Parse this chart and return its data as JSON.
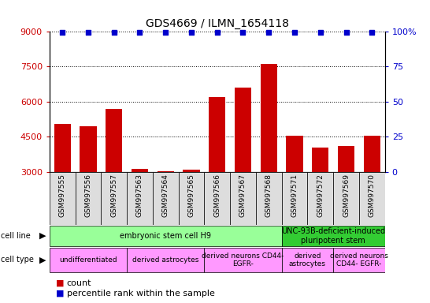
{
  "title": "GDS4669 / ILMN_1654118",
  "samples": [
    "GSM997555",
    "GSM997556",
    "GSM997557",
    "GSM997563",
    "GSM997564",
    "GSM997565",
    "GSM997566",
    "GSM997567",
    "GSM997568",
    "GSM997571",
    "GSM997572",
    "GSM997569",
    "GSM997570"
  ],
  "counts": [
    5050,
    4950,
    5700,
    3150,
    3050,
    3100,
    6200,
    6600,
    7600,
    4550,
    4050,
    4100,
    4550
  ],
  "percentile": [
    99,
    99,
    99,
    99,
    99,
    99,
    99,
    99,
    99,
    99,
    99,
    99,
    99
  ],
  "bar_color": "#cc0000",
  "dot_color": "#0000cc",
  "ylim_left": [
    3000,
    9000
  ],
  "ylim_right": [
    0,
    100
  ],
  "yticks_left": [
    3000,
    4500,
    6000,
    7500,
    9000
  ],
  "yticks_right": [
    0,
    25,
    50,
    75,
    100
  ],
  "cell_line_groups": [
    {
      "label": "embryonic stem cell H9",
      "start": 0,
      "end": 8,
      "color": "#99ff99"
    },
    {
      "label": "UNC-93B-deficient-induced\npluripotent stem",
      "start": 9,
      "end": 12,
      "color": "#33cc33"
    }
  ],
  "cell_type_groups": [
    {
      "label": "undifferentiated",
      "start": 0,
      "end": 2,
      "color": "#ff99ff"
    },
    {
      "label": "derived astrocytes",
      "start": 3,
      "end": 5,
      "color": "#ff99ff"
    },
    {
      "label": "derived neurons CD44-\nEGFR-",
      "start": 6,
      "end": 8,
      "color": "#ff99ff"
    },
    {
      "label": "derived\nastrocytes",
      "start": 9,
      "end": 10,
      "color": "#ff99ff"
    },
    {
      "label": "derived neurons\nCD44- EGFR-",
      "start": 11,
      "end": 12,
      "color": "#ff99ff"
    }
  ],
  "legend_count_color": "#cc0000",
  "legend_pct_color": "#0000cc",
  "xtick_bg_color": "#dddddd",
  "background_color": "#ffffff"
}
